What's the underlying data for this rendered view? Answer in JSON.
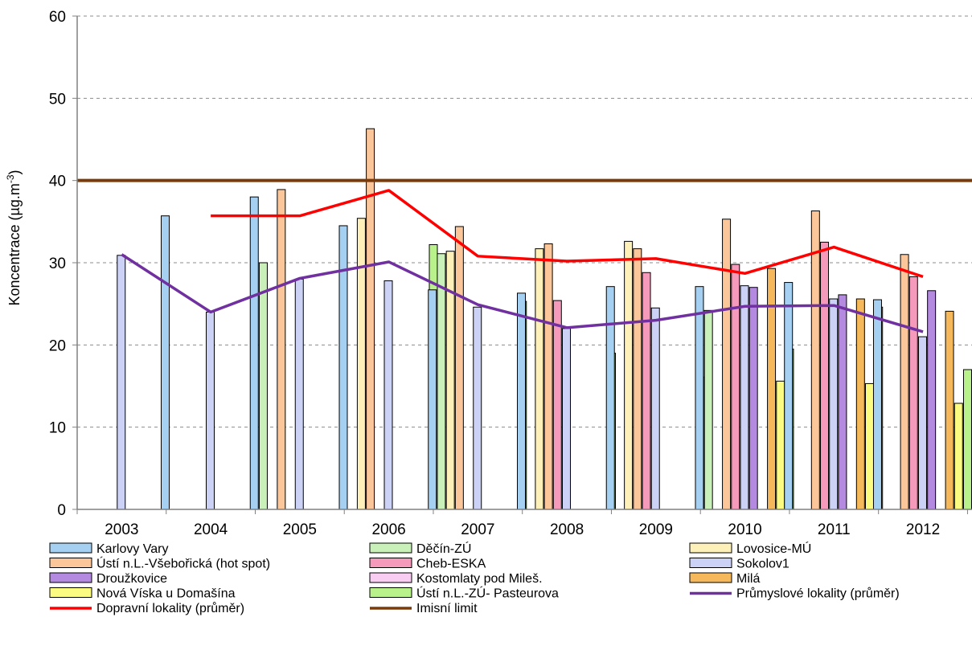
{
  "chart_data": {
    "type": "bar",
    "title": "",
    "xlabel": "",
    "ylabel_main": "Koncentrace (µg.m",
    "ylabel_sup": "-3",
    "ylabel_close": ")",
    "ylim": [
      0,
      60
    ],
    "yticks": [
      "0",
      "10",
      "20",
      "30",
      "40",
      "50",
      "60"
    ],
    "grid": true,
    "legend_position": "bottom",
    "categories": [
      "2003",
      "2004",
      "2005",
      "2006",
      "2007",
      "2008",
      "2009",
      "2010",
      "2011",
      "2012"
    ],
    "series": [
      {
        "name": "Karlovy Vary",
        "color": "#a6d0f2",
        "values": [
          null,
          35.7,
          38.0,
          34.5,
          26.7,
          26.3,
          27.1,
          27.1,
          27.6,
          25.5
        ]
      },
      {
        "name": "Děčín-ZÚ",
        "color": "#c9f0b8",
        "values": [
          null,
          null,
          30.0,
          null,
          31.1,
          null,
          null,
          24.2,
          null,
          null
        ]
      },
      {
        "name": "Lovosice-MÚ",
        "color": "#fdf0b8",
        "values": [
          null,
          null,
          null,
          35.4,
          31.4,
          31.7,
          32.6,
          null,
          null,
          null
        ]
      },
      {
        "name": "Ústí n.L.-Všebořická (hot spot)",
        "color": "#fbc79a",
        "values": [
          null,
          null,
          38.9,
          46.3,
          34.4,
          32.3,
          31.7,
          35.3,
          36.3,
          31.0
        ]
      },
      {
        "name": "Cheb-ESKA",
        "color": "#f59aba",
        "values": [
          null,
          null,
          null,
          null,
          null,
          25.4,
          28.8,
          29.8,
          32.5,
          28.3
        ]
      },
      {
        "name": "Sokolov1",
        "color": "#ccd2f5",
        "values": [
          30.9,
          24.0,
          28.0,
          27.8,
          24.6,
          22.0,
          24.5,
          27.2,
          25.6,
          21.0
        ]
      },
      {
        "name": "Droužkovice",
        "color": "#b48ae0",
        "values": [
          null,
          null,
          null,
          null,
          null,
          null,
          null,
          27.0,
          26.1,
          26.6
        ]
      },
      {
        "name": "Kostomlaty pod Mileš.",
        "color": "#f9cdf2",
        "values": [
          null,
          null,
          null,
          null,
          null,
          null,
          null,
          null,
          null,
          null
        ]
      },
      {
        "name": "Milá",
        "color": "#f5b95c",
        "values": [
          null,
          null,
          null,
          null,
          null,
          null,
          null,
          29.3,
          25.6,
          24.1
        ]
      },
      {
        "name": "Nová Víska u Domašína",
        "color": "#fbfb82",
        "values": [
          null,
          null,
          null,
          null,
          null,
          null,
          null,
          15.6,
          15.3,
          12.9
        ]
      },
      {
        "name": "Ústí n.L.-ZÚ- Pasteurova",
        "color": "#b9f28a",
        "values": [
          null,
          null,
          null,
          32.2,
          25.3,
          19.0,
          16.1,
          19.5,
          24.6,
          17.0
        ]
      }
    ],
    "lines": [
      {
        "name": "Průmyslové lokality (průměr)",
        "color": "#7030a0",
        "values": [
          31.0,
          24.0,
          28.1,
          30.1,
          24.9,
          22.1,
          23.0,
          24.7,
          24.8,
          21.6
        ]
      },
      {
        "name": "Dopravní lokality (průměr)",
        "color": "#ff0000",
        "values": [
          null,
          35.7,
          35.7,
          38.8,
          30.8,
          30.2,
          30.5,
          28.7,
          31.9,
          28.3
        ]
      }
    ],
    "reference": {
      "name": "Imisní limit",
      "color": "#7a3a0a",
      "value": 40
    }
  }
}
